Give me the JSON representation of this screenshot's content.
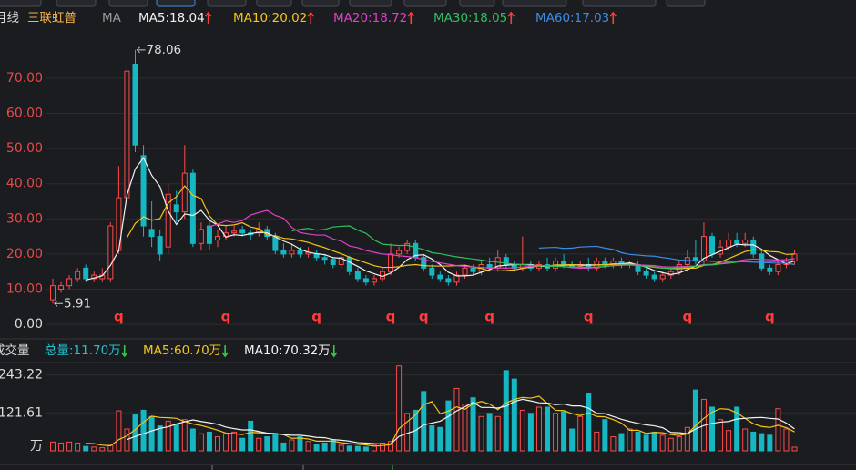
{
  "header": {
    "period": "月线",
    "name": "三联虹普"
  },
  "chart_data": [
    {
      "type": "candlestick",
      "legend_title": "MA",
      "up_color": "#ff4a4a",
      "down_color": "#16b7c2",
      "grid": true,
      "ylim": [
        -3.6,
        81.9
      ],
      "yticks": [
        {
          "value": 70,
          "label": "70.00"
        },
        {
          "value": 60,
          "label": "60.00"
        },
        {
          "value": 50,
          "label": "50.00"
        },
        {
          "value": 40,
          "label": "40.00"
        },
        {
          "value": 30,
          "label": "30.00"
        },
        {
          "value": 20,
          "label": "20.00"
        },
        {
          "value": 10,
          "label": "10.00"
        },
        {
          "value": 0,
          "label": "0.00"
        }
      ],
      "open": [
        7,
        10,
        11,
        13,
        16,
        13,
        13,
        13,
        21,
        36,
        74,
        48,
        27,
        25,
        22,
        34,
        32,
        43,
        23,
        28,
        24,
        25,
        26,
        27,
        26,
        26,
        27,
        25,
        21,
        20,
        21,
        20,
        20,
        19,
        18.5,
        17,
        19,
        15,
        13,
        12,
        13,
        15,
        20,
        21,
        23,
        19,
        16,
        14,
        13,
        12,
        14,
        16,
        15,
        17,
        16,
        19,
        17,
        16,
        17,
        16,
        17,
        16,
        18,
        17,
        16.5,
        17,
        16,
        18,
        17,
        18,
        17,
        17,
        15,
        14,
        13,
        14,
        15,
        17,
        19,
        18,
        25,
        20,
        22,
        24,
        23,
        24,
        20,
        16,
        15,
        17,
        18
      ],
      "high": [
        13,
        12,
        14,
        16,
        17,
        15,
        16,
        29,
        45,
        74,
        78.06,
        51,
        35,
        27,
        40,
        38,
        51,
        44,
        29,
        30,
        27,
        28,
        28,
        28,
        27,
        29,
        28,
        26,
        23,
        23,
        22,
        22,
        21,
        20,
        19,
        20,
        19.5,
        16,
        14,
        14,
        16,
        23,
        22,
        24,
        24,
        20,
        17,
        15,
        14,
        15,
        17,
        17,
        18,
        19,
        21,
        20,
        18,
        25,
        18,
        18,
        19,
        19,
        20,
        18,
        18,
        19,
        19,
        19,
        19,
        19,
        18,
        18,
        16,
        15,
        15,
        16,
        18,
        21,
        24,
        29,
        26,
        24,
        26,
        26,
        26,
        25,
        21,
        17,
        18,
        19,
        21
      ],
      "low": [
        5.91,
        9,
        10,
        12,
        12,
        12,
        12,
        12,
        20,
        34,
        49,
        25,
        22,
        18,
        20,
        29,
        30,
        22,
        21,
        21,
        22,
        24,
        25,
        25,
        24,
        25,
        24,
        20,
        19,
        19,
        19,
        19,
        18,
        17,
        16,
        16,
        14,
        12,
        11,
        11,
        12,
        14,
        19,
        20,
        18,
        15,
        13,
        12,
        11,
        11,
        13,
        14,
        14,
        15,
        15,
        16,
        15,
        15,
        15,
        15,
        15,
        15,
        16,
        16,
        16,
        15,
        15,
        16,
        16,
        16,
        16,
        14,
        13,
        12,
        12,
        13,
        14,
        16,
        17,
        17,
        19,
        19,
        21,
        22,
        22,
        19,
        15,
        14,
        14,
        16,
        17
      ],
      "close": [
        11,
        11,
        13,
        15,
        13,
        14,
        14,
        28,
        36,
        72,
        51,
        28,
        25,
        20,
        37,
        32,
        43,
        23,
        27,
        23,
        25,
        26,
        26.5,
        26,
        25.5,
        27,
        25,
        21,
        20,
        21,
        20,
        20.5,
        19,
        18.5,
        17,
        19,
        15,
        13,
        12,
        13,
        15,
        20,
        21,
        23,
        19,
        16,
        14,
        13,
        12,
        14,
        16,
        15,
        17,
        16,
        19,
        17,
        16,
        17,
        16,
        17,
        16,
        18,
        17,
        16.5,
        17,
        16,
        18,
        17,
        18,
        17,
        17.5,
        15,
        14,
        13,
        14,
        15,
        17,
        19,
        18,
        25,
        20,
        22,
        24,
        23,
        24,
        20,
        16,
        15,
        17,
        18,
        20
      ],
      "ma": [
        {
          "label": "MA5:18.04",
          "color": "#f2f2f2",
          "values": [
            null,
            null,
            null,
            null,
            12.6,
            13.2,
            13.8,
            16.8,
            21,
            36.8,
            44.2,
            47.4,
            42.4,
            39.2,
            32.2,
            28.4,
            31.4,
            31,
            32.4,
            29.6,
            28.2,
            24.8,
            25.5,
            25.3,
            25.8,
            26.2,
            26,
            24.9,
            23.7,
            22.8,
            21.4,
            20.5,
            20.1,
            19.8,
            19,
            18.8,
            17.7,
            16.5,
            15.2,
            14.4,
            13.6,
            14.6,
            16.2,
            18.4,
            19.6,
            19.8,
            18.6,
            17,
            14.8,
            13.8,
            13.8,
            14,
            14.8,
            15.6,
            16.6,
            16.8,
            17,
            17,
            17,
            16.6,
            16.4,
            16.8,
            16.8,
            16.9,
            16.9,
            16.9,
            16.9,
            16.9,
            17.2,
            17.2,
            17.5,
            16.9,
            16.3,
            15.3,
            14.7,
            14.2,
            14.6,
            15.6,
            16.6,
            18.8,
            19.8,
            20.8,
            21.8,
            22.8,
            22.6,
            22.6,
            21.4,
            19.6,
            18.4,
            17.2,
            18.04
          ]
        },
        {
          "label": "MA10:20.02",
          "color": "#f5c518",
          "values": [
            null,
            null,
            null,
            null,
            null,
            null,
            null,
            null,
            null,
            24.7,
            28.7,
            30.6,
            29.6,
            30.1,
            34.5,
            36.3,
            39.4,
            36.7,
            35.8,
            30.9,
            28.3,
            28.1,
            28.3,
            28.9,
            27.7,
            27.2,
            25.4,
            25.2,
            24.5,
            24.3,
            23.8,
            23.3,
            22.5,
            21.8,
            20.9,
            20.1,
            19.1,
            18.3,
            17.5,
            16.7,
            16.2,
            16.2,
            16.4,
            16.8,
            17,
            16.7,
            16.6,
            16.6,
            16.6,
            16.7,
            16.8,
            16.3,
            15.9,
            15.2,
            15.2,
            15.3,
            15.5,
            15.9,
            16.3,
            16.6,
            16.6,
            16.9,
            16.9,
            17,
            16.8,
            16.7,
            16.9,
            16.9,
            17.1,
            17.1,
            17.2,
            16.9,
            16.6,
            16.3,
            16,
            15.9,
            15.8,
            16,
            16,
            16.8,
            17,
            17.7,
            18.7,
            19.7,
            20.7,
            21.2,
            21.1,
            20.7,
            20.6,
            19.9,
            20.02
          ]
        },
        {
          "label": "MA20:18.72",
          "color": "#e040c8",
          "values": [
            null,
            null,
            null,
            null,
            null,
            null,
            null,
            null,
            null,
            null,
            null,
            null,
            null,
            null,
            null,
            null,
            null,
            null,
            null,
            27.8,
            28.5,
            29.4,
            29,
            29.5,
            31.1,
            31.8,
            32.4,
            31,
            30.2,
            27.6,
            26.1,
            25.7,
            25.4,
            25.4,
            24.3,
            23.7,
            22.3,
            21.8,
            21,
            20.5,
            20,
            19.8,
            19.5,
            19.3,
            19,
            18.4,
            17.9,
            17.5,
            17.1,
            16.7,
            16.5,
            16.3,
            16.2,
            16,
            16.1,
            16,
            16.1,
            16.3,
            16.5,
            16.7,
            16.7,
            16.6,
            16.4,
            16.1,
            16,
            16,
            16.2,
            16.4,
            16.7,
            16.9,
            16.9,
            16.9,
            16.8,
            16.7,
            16.4,
            16.3,
            16.4,
            16.5,
            16.6,
            17,
            17.1,
            17.3,
            17.7,
            18,
            18.4,
            18.6,
            18.5,
            18.4,
            18.3,
            18.4,
            18.72
          ]
        },
        {
          "label": "MA30:18.05",
          "color": "#2fbf5f",
          "values": [
            null,
            null,
            null,
            null,
            null,
            null,
            null,
            null,
            null,
            null,
            null,
            null,
            null,
            null,
            null,
            null,
            null,
            null,
            null,
            null,
            null,
            null,
            null,
            null,
            null,
            null,
            null,
            null,
            null,
            26.6,
            27,
            27.3,
            26.8,
            27,
            27.7,
            27.9,
            28,
            26.8,
            25.9,
            24,
            22.8,
            22.6,
            22.4,
            22.5,
            21.9,
            21.3,
            20.4,
            20.1,
            19.6,
            19.2,
            18.9,
            18.6,
            18.3,
            17.9,
            17.7,
            17.4,
            17.1,
            17,
            16.8,
            16.7,
            16.5,
            16.5,
            16.4,
            16.3,
            16.3,
            16.2,
            16.3,
            16.5,
            16.7,
            16.8,
            16.9,
            16.7,
            16.5,
            16.2,
            16,
            16,
            16.1,
            16.3,
            16.5,
            16.9,
            16.9,
            17.2,
            17.4,
            17.7,
            17.9,
            18,
            18,
            17.9,
            17.9,
            18,
            18.05
          ]
        },
        {
          "label": "MA60:17.03",
          "color": "#3a8ee8",
          "values": [
            null,
            null,
            null,
            null,
            null,
            null,
            null,
            null,
            null,
            null,
            null,
            null,
            null,
            null,
            null,
            null,
            null,
            null,
            null,
            null,
            null,
            null,
            null,
            null,
            null,
            null,
            null,
            null,
            null,
            null,
            null,
            null,
            null,
            null,
            null,
            null,
            null,
            null,
            null,
            null,
            null,
            null,
            null,
            null,
            null,
            null,
            null,
            null,
            null,
            null,
            null,
            null,
            null,
            null,
            null,
            null,
            null,
            null,
            null,
            21.7,
            21.8,
            21.9,
            21.6,
            21.7,
            22,
            22.1,
            22.2,
            21.7,
            21.3,
            20.4,
            19.9,
            19.7,
            19.5,
            19.4,
            19,
            18.7,
            18.3,
            18.2,
            18.1,
            18.1,
            17.9,
            17.9,
            17.9,
            17.8,
            17.8,
            17.7,
            17.6,
            17.5,
            17.4,
            17.4,
            17.03
          ]
        }
      ],
      "annotations": [
        {
          "index": 10,
          "at": "high"
        },
        {
          "index": 0,
          "at": "low"
        }
      ],
      "markers": [
        {
          "index": 8,
          "label": "q"
        },
        {
          "index": 21,
          "label": "q"
        },
        {
          "index": 32,
          "label": "q"
        },
        {
          "index": 41,
          "label": "q"
        },
        {
          "index": 45,
          "label": "q"
        },
        {
          "index": 53,
          "label": "q"
        },
        {
          "index": 65,
          "label": "q"
        },
        {
          "index": 77,
          "label": "q"
        },
        {
          "index": 87,
          "label": "q"
        }
      ]
    },
    {
      "type": "bar",
      "title": "成交量",
      "total_label": "总量:11.70万",
      "unit": "万",
      "grid": true,
      "ylim": [
        0,
        277
      ],
      "yticks": [
        243.22,
        121.61
      ],
      "values": [
        28,
        25,
        28,
        25,
        14,
        12,
        10,
        18,
        128,
        70,
        115,
        130,
        110,
        80,
        95,
        85,
        100,
        70,
        55,
        60,
        45,
        55,
        60,
        40,
        95,
        40,
        45,
        55,
        25,
        35,
        45,
        30,
        20,
        25,
        35,
        18,
        15,
        14,
        12,
        18,
        25,
        30,
        272,
        120,
        130,
        190,
        80,
        75,
        160,
        200,
        150,
        170,
        110,
        120,
        110,
        257,
        230,
        130,
        120,
        140,
        140,
        120,
        125,
        70,
        110,
        185,
        60,
        100,
        45,
        55,
        70,
        60,
        50,
        60,
        50,
        40,
        45,
        75,
        195,
        165,
        140,
        100,
        65,
        140,
        70,
        60,
        55,
        50,
        135,
        70,
        11.7
      ],
      "ma": [
        {
          "label": "MA5:60.70万",
          "color": "#f5c518",
          "values": [
            null,
            null,
            null,
            null,
            24,
            23,
            18,
            16,
            36,
            48,
            68,
            92,
            111,
            107,
            106,
            104,
            94,
            86,
            81,
            74,
            66,
            57,
            55,
            52,
            59,
            58,
            56,
            55,
            52,
            40,
            41,
            38,
            31,
            31,
            31,
            26,
            23,
            21,
            19,
            15,
            17,
            20,
            71,
            93,
            115,
            148,
            158,
            119,
            127,
            141,
            133,
            151,
            158,
            150,
            132,
            153,
            165,
            171,
            169,
            175,
            152,
            130,
            129,
            119,
            113,
            122,
            110,
            109,
            100,
            89,
            66,
            66,
            56,
            59,
            58,
            52,
            49,
            54,
            81,
            104,
            124,
            135,
            133,
            122,
            104,
            87,
            78,
            75,
            82,
            74,
            60.7
          ]
        },
        {
          "label": "MA10:70.32万",
          "color": "#f2f2f2",
          "values": [
            null,
            null,
            null,
            null,
            null,
            null,
            null,
            null,
            null,
            36,
            46,
            55,
            64,
            72,
            77,
            86,
            93,
            99,
            94,
            90,
            85,
            76,
            71,
            67,
            67,
            62,
            57,
            55,
            52,
            50,
            50,
            47,
            43,
            42,
            36,
            34,
            31,
            26,
            25,
            23,
            22,
            22,
            46,
            56,
            65,
            83,
            89,
            95,
            110,
            128,
            141,
            155,
            139,
            139,
            137,
            143,
            158,
            165,
            160,
            154,
            153,
            148,
            150,
            144,
            144,
            137,
            120,
            119,
            110,
            101,
            94,
            88,
            83,
            80,
            74,
            59,
            58,
            55,
            70,
            81,
            88,
            92,
            94,
            102,
            104,
            106,
            107,
            104,
            102,
            89,
            70.32
          ]
        }
      ]
    }
  ]
}
